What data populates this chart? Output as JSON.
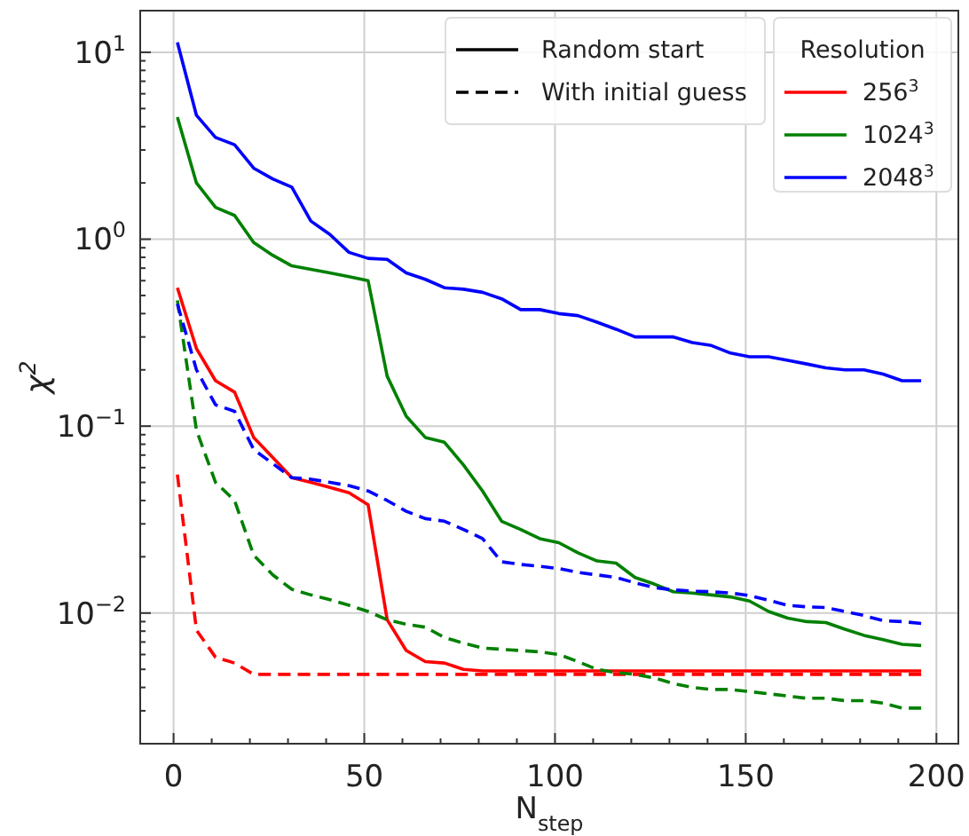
{
  "chart_data": {
    "type": "line",
    "xlabel": "N$_{step}$",
    "ylabel": "χ$^{2}$",
    "legend_title": "Resolution",
    "log": "y",
    "grid": true,
    "legend": "top right",
    "annotations": [
      "Random start",
      "With initial guess"
    ],
    "x": [
      1,
      6,
      11,
      16,
      21,
      26,
      31,
      36,
      41,
      46,
      51,
      56,
      61,
      66,
      71,
      76,
      81,
      86,
      91,
      96,
      101,
      106,
      111,
      116,
      121,
      126,
      131,
      136,
      141,
      146,
      151,
      156,
      161,
      166,
      171,
      176,
      181,
      186,
      191,
      196
    ],
    "xlim": [
      -8.75,
      205.75
    ],
    "ylim": [
      0.002,
      16.7
    ],
    "xticks": [
      0,
      {
        "value": 10,
        "label": null
      },
      {
        "value": 20,
        "label": null
      },
      {
        "value": 30,
        "label": null
      },
      {
        "value": 40,
        "label": null
      },
      50,
      {
        "value": 60,
        "label": null
      },
      {
        "value": 70,
        "label": null
      },
      {
        "value": 80,
        "label": null
      },
      {
        "value": 90,
        "label": null
      },
      100,
      {
        "value": 110,
        "label": null
      },
      {
        "value": 120,
        "label": null
      },
      {
        "value": 130,
        "label": null
      },
      {
        "value": 140,
        "label": null
      },
      150,
      {
        "value": 160,
        "label": null
      },
      {
        "value": 170,
        "label": null
      },
      {
        "value": 180,
        "label": null
      },
      {
        "value": 190,
        "label": null
      },
      200
    ],
    "yticks": [
      {
        "value": 0.003,
        "label": null
      },
      {
        "value": 0.004,
        "label": null
      },
      {
        "value": 0.005,
        "label": null
      },
      {
        "value": 0.006,
        "label": null
      },
      {
        "value": 0.007,
        "label": null
      },
      {
        "value": 0.008,
        "label": null
      },
      {
        "value": 0.009,
        "label": null
      },
      {
        "value": 0.01,
        "label": "10$^{−2}$"
      },
      {
        "value": 0.02,
        "label": null
      },
      {
        "value": 0.03,
        "label": null
      },
      {
        "value": 0.04,
        "label": null
      },
      {
        "value": 0.05,
        "label": null
      },
      {
        "value": 0.06,
        "label": null
      },
      {
        "value": 0.07,
        "label": null
      },
      {
        "value": 0.08,
        "label": null
      },
      {
        "value": 0.09,
        "label": null
      },
      {
        "value": 0.1,
        "label": "10$^{−1}$"
      },
      {
        "value": 0.2,
        "label": null
      },
      {
        "value": 0.3,
        "label": null
      },
      {
        "value": 0.4,
        "label": null
      },
      {
        "value": 0.5,
        "label": null
      },
      {
        "value": 0.6,
        "label": null
      },
      {
        "value": 0.7,
        "label": null
      },
      {
        "value": 0.8,
        "label": null
      },
      {
        "value": 0.9,
        "label": null
      },
      {
        "value": 1,
        "label": "10$^{0}$"
      },
      {
        "value": 2,
        "label": null
      },
      {
        "value": 3,
        "label": null
      },
      {
        "value": 4,
        "label": null
      },
      {
        "value": 5,
        "label": null
      },
      {
        "value": 6,
        "label": null
      },
      {
        "value": 7,
        "label": null
      },
      {
        "value": 8,
        "label": null
      },
      {
        "value": 9,
        "label": null
      },
      {
        "value": 10,
        "label": "10$^{1}$"
      }
    ],
    "series": [
      {
        "name": "256$^{3}$",
        "color": "#ff0000",
        "line_style": "solid",
        "values": [
          0.55,
          0.26,
          0.175,
          0.152,
          0.087,
          0.068,
          0.053,
          0.05,
          0.047,
          0.044,
          0.038,
          0.0092,
          0.0063,
          0.0055,
          0.0054,
          0.005,
          0.0049,
          0.0049,
          0.0049,
          0.0049,
          0.0049,
          0.0049,
          0.0049,
          0.0049,
          0.0049,
          0.0049,
          0.0049,
          0.0049,
          0.0049,
          0.0049,
          0.0049,
          0.0049,
          0.0049,
          0.0049,
          0.0049,
          0.0049,
          0.0049,
          0.0049,
          0.0049,
          0.0049
        ]
      },
      {
        "name": "1024$^{3}$",
        "color": "#008000",
        "line_style": "solid",
        "values": [
          4.5,
          2.0,
          1.48,
          1.34,
          0.96,
          0.82,
          0.72,
          0.69,
          0.66,
          0.63,
          0.6,
          0.185,
          0.113,
          0.087,
          0.082,
          0.062,
          0.045,
          0.031,
          0.028,
          0.025,
          0.0238,
          0.021,
          0.019,
          0.0185,
          0.0155,
          0.0143,
          0.013,
          0.0128,
          0.0125,
          0.0122,
          0.0116,
          0.0102,
          0.0094,
          0.009,
          0.0089,
          0.0082,
          0.0076,
          0.0072,
          0.0068,
          0.0067
        ]
      },
      {
        "name": "2048$^{3}$",
        "color": "#0000ff",
        "line_style": "solid",
        "values": [
          11.3,
          4.6,
          3.5,
          3.2,
          2.4,
          2.1,
          1.9,
          1.25,
          1.06,
          0.85,
          0.79,
          0.78,
          0.66,
          0.61,
          0.55,
          0.54,
          0.52,
          0.48,
          0.42,
          0.42,
          0.4,
          0.39,
          0.36,
          0.33,
          0.3,
          0.3,
          0.3,
          0.28,
          0.27,
          0.246,
          0.235,
          0.235,
          0.225,
          0.215,
          0.205,
          0.2,
          0.2,
          0.19,
          0.175,
          0.175
        ]
      },
      {
        "color": "#ff0000",
        "line_style": "dashed",
        "values": [
          0.055,
          0.0081,
          0.0058,
          0.0054,
          0.0047,
          0.0047,
          0.0047,
          0.0047,
          0.0047,
          0.0047,
          0.0047,
          0.0047,
          0.0047,
          0.0047,
          0.0047,
          0.0047,
          0.0047,
          0.0047,
          0.0047,
          0.0047,
          0.0047,
          0.0047,
          0.0047,
          0.0047,
          0.0047,
          0.0047,
          0.0047,
          0.0047,
          0.0047,
          0.0047,
          0.0047,
          0.0047,
          0.0047,
          0.0047,
          0.0047,
          0.0047,
          0.0047,
          0.0047,
          0.0047,
          0.0047
        ]
      },
      {
        "color": "#008000",
        "line_style": "dashed",
        "values": [
          0.47,
          0.095,
          0.05,
          0.04,
          0.0204,
          0.016,
          0.0134,
          0.0125,
          0.0118,
          0.011,
          0.0102,
          0.0092,
          0.0087,
          0.0084,
          0.0074,
          0.0069,
          0.0065,
          0.0064,
          0.0063,
          0.0062,
          0.006,
          0.0055,
          0.005,
          0.0048,
          0.0047,
          0.0045,
          0.0042,
          0.004,
          0.0039,
          0.0039,
          0.0038,
          0.0037,
          0.0036,
          0.0035,
          0.0035,
          0.0034,
          0.0034,
          0.0033,
          0.0031,
          0.0031
        ]
      },
      {
        "color": "#0000ff",
        "line_style": "dashed",
        "values": [
          0.45,
          0.2,
          0.13,
          0.12,
          0.075,
          0.063,
          0.053,
          0.052,
          0.05,
          0.048,
          0.045,
          0.04,
          0.035,
          0.032,
          0.031,
          0.028,
          0.025,
          0.0188,
          0.0182,
          0.0178,
          0.0173,
          0.0165,
          0.016,
          0.0155,
          0.0145,
          0.0137,
          0.0133,
          0.0131,
          0.013,
          0.0128,
          0.0124,
          0.0117,
          0.011,
          0.0108,
          0.0107,
          0.0102,
          0.0097,
          0.0091,
          0.009,
          0.0088
        ]
      }
    ]
  }
}
